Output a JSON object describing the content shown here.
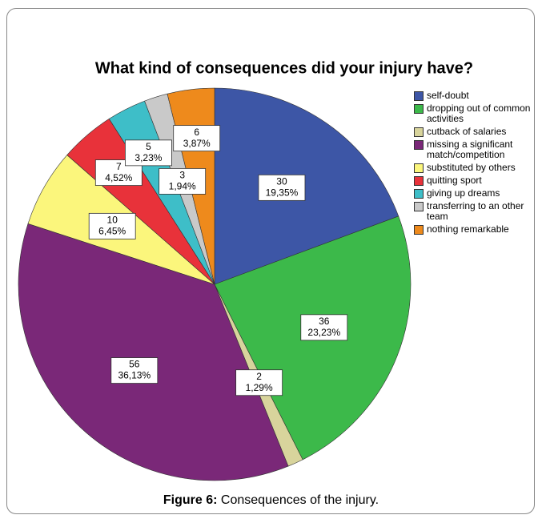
{
  "chart_data": {
    "type": "pie",
    "title": "What kind of consequences did your injury have?",
    "categories": [
      "self-doubt",
      "dropping out of common activities",
      "cutback of salaries",
      "missing a significant match/competition",
      "substituted by others",
      "quitting sport",
      "giving up dreams",
      "transferring to an other team",
      "nothing remarkable"
    ],
    "values": [
      30,
      36,
      2,
      56,
      10,
      7,
      5,
      3,
      6
    ],
    "percent_labels": [
      "19,35%",
      "23,23%",
      "1,29%",
      "36,13%",
      "6,45%",
      "4,52%",
      "3,23%",
      "1,94%",
      "3,87%"
    ],
    "colors": [
      "#3d56a6",
      "#3cb94a",
      "#d8d49c",
      "#7a2878",
      "#fbf67c",
      "#e8323a",
      "#3ebec8",
      "#c9c9c9",
      "#ee8a1c"
    ],
    "legend": "right"
  },
  "caption": {
    "label": "Figure 6:",
    "text": "Consequences of the injury."
  }
}
